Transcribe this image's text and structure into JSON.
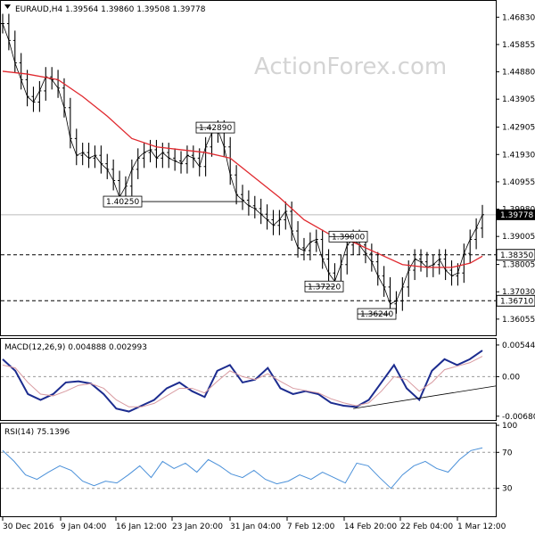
{
  "chart_data": [
    {
      "type": "candlestick",
      "symbol_line": "EURAUD,H4  1.39564 1.39860 1.39508 1.39778",
      "watermark": "ActionForex.com",
      "ylim": [
        1.3551,
        1.4738
      ],
      "y_ticks": [
        "1.46830",
        "1.45855",
        "1.44880",
        "1.43905",
        "1.42905",
        "1.41930",
        "1.40955",
        "1.39980",
        "1.39005",
        "1.38005",
        "1.37030",
        "1.36055"
      ],
      "current_price": "1.39778",
      "colors": {
        "price": "#000000",
        "moving_average": "#e0292f",
        "macd": "#1c2c8f",
        "macd_signal": "#d89aa0",
        "rsi": "#4a90d9",
        "price_tag": "#000000"
      },
      "horizontal_levels": [
        {
          "value": 1.3835,
          "label": "1.38350"
        },
        {
          "value": 1.3671,
          "label": "1.36710"
        }
      ],
      "annotations": [
        {
          "label": "1.42890",
          "value": 1.4289
        },
        {
          "label": "1.40250",
          "value": 1.4025
        },
        {
          "label": "1.39000",
          "value": 1.39
        },
        {
          "label": "1.37220",
          "value": 1.3722
        },
        {
          "label": "1.36240",
          "value": 1.3624
        }
      ],
      "price_path": [
        [
          0,
          1.466
        ],
        [
          1,
          1.46
        ],
        [
          2,
          1.452
        ],
        [
          3,
          1.446
        ],
        [
          4,
          1.44
        ],
        [
          5,
          1.438
        ],
        [
          6,
          1.442
        ],
        [
          7,
          1.447
        ],
        [
          8,
          1.446
        ],
        [
          9,
          1.443
        ],
        [
          10,
          1.436
        ],
        [
          11,
          1.425
        ],
        [
          12,
          1.419
        ],
        [
          13,
          1.42
        ],
        [
          14,
          1.418
        ],
        [
          15,
          1.419
        ],
        [
          16,
          1.416
        ],
        [
          17,
          1.414
        ],
        [
          18,
          1.41
        ],
        [
          19,
          1.404
        ],
        [
          20,
          1.408
        ],
        [
          21,
          1.414
        ],
        [
          22,
          1.418
        ],
        [
          23,
          1.42
        ],
        [
          24,
          1.421
        ],
        [
          25,
          1.418
        ],
        [
          26,
          1.42
        ],
        [
          27,
          1.418
        ],
        [
          28,
          1.417
        ],
        [
          29,
          1.416
        ],
        [
          30,
          1.419
        ],
        [
          31,
          1.418
        ],
        [
          32,
          1.415
        ],
        [
          33,
          1.422
        ],
        [
          34,
          1.427
        ],
        [
          35,
          1.428
        ],
        [
          36,
          1.422
        ],
        [
          37,
          1.412
        ],
        [
          38,
          1.405
        ],
        [
          39,
          1.403
        ],
        [
          40,
          1.401
        ],
        [
          41,
          1.4
        ],
        [
          42,
          1.398
        ],
        [
          43,
          1.396
        ],
        [
          44,
          1.394
        ],
        [
          45,
          1.396
        ],
        [
          46,
          1.399
        ],
        [
          47,
          1.392
        ],
        [
          48,
          1.386
        ],
        [
          49,
          1.385
        ],
        [
          50,
          1.388
        ],
        [
          51,
          1.389
        ],
        [
          52,
          1.382
        ],
        [
          53,
          1.377
        ],
        [
          54,
          1.374
        ],
        [
          55,
          1.38
        ],
        [
          56,
          1.387
        ],
        [
          57,
          1.389
        ],
        [
          58,
          1.387
        ],
        [
          59,
          1.384
        ],
        [
          60,
          1.381
        ],
        [
          61,
          1.376
        ],
        [
          62,
          1.372
        ],
        [
          63,
          1.366
        ],
        [
          64,
          1.367
        ],
        [
          65,
          1.372
        ],
        [
          66,
          1.378
        ],
        [
          67,
          1.382
        ],
        [
          68,
          1.381
        ],
        [
          69,
          1.379
        ],
        [
          70,
          1.38
        ],
        [
          71,
          1.382
        ],
        [
          72,
          1.378
        ],
        [
          73,
          1.376
        ],
        [
          74,
          1.377
        ],
        [
          75,
          1.384
        ],
        [
          76,
          1.389
        ],
        [
          77,
          1.393
        ],
        [
          78,
          1.3978
        ]
      ],
      "ma_path": [
        [
          0,
          1.449
        ],
        [
          4,
          1.448
        ],
        [
          9,
          1.446
        ],
        [
          13,
          1.44
        ],
        [
          17,
          1.433
        ],
        [
          21,
          1.425
        ],
        [
          25,
          1.422
        ],
        [
          29,
          1.421
        ],
        [
          33,
          1.42
        ],
        [
          37,
          1.418
        ],
        [
          41,
          1.411
        ],
        [
          45,
          1.404
        ],
        [
          49,
          1.396
        ],
        [
          53,
          1.391
        ],
        [
          57,
          1.388
        ],
        [
          61,
          1.384
        ],
        [
          65,
          1.38
        ],
        [
          69,
          1.379
        ],
        [
          73,
          1.379
        ],
        [
          76,
          1.3805
        ],
        [
          78,
          1.383
        ]
      ],
      "bar_count": 79
    },
    {
      "type": "line",
      "title": "MACD(12,26,9) 0.004888 0.002993",
      "ylim": [
        -0.0073,
        0.0062
      ],
      "y_ticks": [
        "0.005445",
        "0.00",
        "-0.006804"
      ],
      "levels": [
        0
      ],
      "trendline": {
        "from": [
          57,
          -0.0055
        ],
        "to": [
          78,
          -0.0016
        ]
      },
      "series": [
        {
          "name": "MACD",
          "values": [
            0.003,
            0.001,
            -0.003,
            -0.004,
            -0.003,
            -0.001,
            -0.0008,
            -0.0012,
            -0.003,
            -0.0055,
            -0.006,
            -0.005,
            -0.004,
            -0.002,
            -0.001,
            -0.0025,
            -0.0035,
            0.001,
            0.002,
            -0.001,
            -0.0005,
            0.0015,
            -0.002,
            -0.003,
            -0.0025,
            -0.003,
            -0.0045,
            -0.005,
            -0.0052,
            -0.004,
            -0.001,
            0.002,
            -0.002,
            -0.004,
            0.001,
            0.003,
            0.002,
            0.003,
            0.0045
          ]
        },
        {
          "name": "Signal",
          "values": [
            0.002,
            0.0015,
            -0.001,
            -0.003,
            -0.0033,
            -0.0025,
            -0.0015,
            -0.0012,
            -0.002,
            -0.004,
            -0.0052,
            -0.0052,
            -0.0046,
            -0.0033,
            -0.002,
            -0.002,
            -0.0028,
            -0.0008,
            0.001,
            0.0,
            -0.0005,
            0.0005,
            -0.0008,
            -0.002,
            -0.0024,
            -0.0028,
            -0.0038,
            -0.0045,
            -0.005,
            -0.0045,
            -0.0025,
            0.0,
            -0.0005,
            -0.0025,
            -0.001,
            0.0012,
            0.0018,
            0.0024,
            0.0035
          ]
        }
      ]
    },
    {
      "type": "line",
      "title": "RSI(14) 75.1396",
      "ylim": [
        0,
        100
      ],
      "y_ticks": [
        "100",
        "70",
        "30",
        "0"
      ],
      "levels": [
        70,
        30
      ],
      "series": [
        {
          "name": "RSI",
          "values": [
            72,
            60,
            45,
            40,
            48,
            55,
            50,
            38,
            33,
            38,
            36,
            45,
            55,
            42,
            60,
            52,
            58,
            48,
            62,
            55,
            46,
            42,
            50,
            40,
            35,
            38,
            45,
            40,
            48,
            42,
            36,
            58,
            55,
            42,
            30,
            45,
            55,
            60,
            52,
            48,
            62,
            72,
            75
          ]
        }
      ]
    },
    {
      "type": "axis",
      "x_tick_labels": [
        "30 Dec 2016",
        "9 Jan 04:00",
        "16 Jan 12:00",
        "23 Jan 20:00",
        "31 Jan 04:00",
        "7 Feb 12:00",
        "14 Feb 20:00",
        "22 Feb 04:00",
        "1 Mar 12:00"
      ]
    }
  ]
}
